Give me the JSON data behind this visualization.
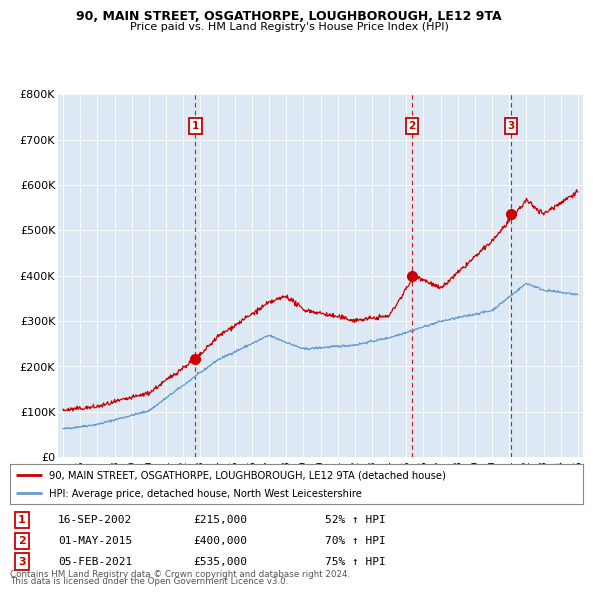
{
  "title1": "90, MAIN STREET, OSGATHORPE, LOUGHBOROUGH, LE12 9TA",
  "title2": "Price paid vs. HM Land Registry's House Price Index (HPI)",
  "background_color": "#dce9f5",
  "outer_bg_color": "#ffffff",
  "red_color": "#cc0000",
  "blue_color": "#6699cc",
  "sale_dates": [
    2002.71,
    2015.33,
    2021.09
  ],
  "sale_prices": [
    215000,
    400000,
    535000
  ],
  "sale_labels": [
    "1",
    "2",
    "3"
  ],
  "sale_date_strs": [
    "16-SEP-2002",
    "01-MAY-2015",
    "05-FEB-2021"
  ],
  "sale_price_strs": [
    "£215,000",
    "£400,000",
    "£535,000"
  ],
  "sale_hpi_strs": [
    "52% ↑ HPI",
    "70% ↑ HPI",
    "75% ↑ HPI"
  ],
  "ylim": [
    0,
    800000
  ],
  "xlim_start": 1994.7,
  "xlim_end": 2025.3,
  "legend_line1": "90, MAIN STREET, OSGATHORPE, LOUGHBOROUGH, LE12 9TA (detached house)",
  "legend_line2": "HPI: Average price, detached house, North West Leicestershire",
  "footer1": "Contains HM Land Registry data © Crown copyright and database right 2024.",
  "footer2": "This data is licensed under the Open Government Licence v3.0.",
  "yticks": [
    0,
    100000,
    200000,
    300000,
    400000,
    500000,
    600000,
    700000,
    800000
  ],
  "ylabels": [
    "£0",
    "£100K",
    "£200K",
    "£300K",
    "£400K",
    "£500K",
    "£600K",
    "£700K",
    "£800K"
  ],
  "xtick_years": [
    1995,
    1996,
    1997,
    1998,
    1999,
    2000,
    2001,
    2002,
    2003,
    2004,
    2005,
    2006,
    2007,
    2008,
    2009,
    2010,
    2011,
    2012,
    2013,
    2014,
    2015,
    2016,
    2017,
    2018,
    2019,
    2020,
    2021,
    2022,
    2023,
    2024,
    2025
  ]
}
